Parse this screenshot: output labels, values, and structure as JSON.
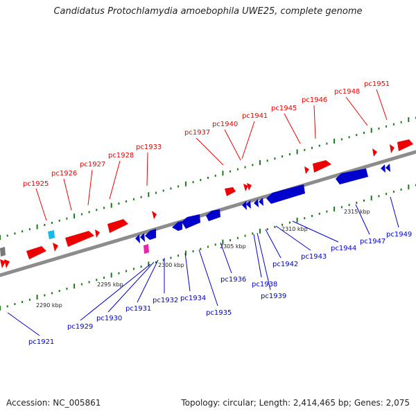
{
  "title": "Candidatus Protochlamydia amoebophila UWE25, complete genome",
  "accession": "Accession: NC_005861",
  "summary": "Topology: circular; Length: 2,414,465 bp; Genes: 2,075",
  "colors": {
    "forward": "#ee0000",
    "reverse": "#0000cc",
    "backbone": "#8c8c8c",
    "tick": "#1a7a1a",
    "special_cyan": "#11bbee",
    "special_pink": "#ee22aa",
    "special_gray": "#777777"
  },
  "scale_labels": [
    "2290 kbp",
    "2295 kbp",
    "2300 kbp",
    "2305 kbp",
    "2310 kbp",
    "2315 kbp"
  ],
  "forward_labels": [
    "pc1925",
    "pc1926",
    "pc1927",
    "pc1928",
    "pc1933",
    "pc1937",
    "pc1940",
    "pc1941",
    "pc1945",
    "pc1946",
    "pc1948",
    "pc1951"
  ],
  "reverse_labels": [
    "pc1921",
    "pc1929",
    "pc1930",
    "pc1931",
    "pc1932",
    "pc1934",
    "pc1935",
    "pc1936",
    "pc1938",
    "pc1939",
    "pc1942",
    "pc1943",
    "pc1944",
    "pc1947",
    "pc1949"
  ]
}
